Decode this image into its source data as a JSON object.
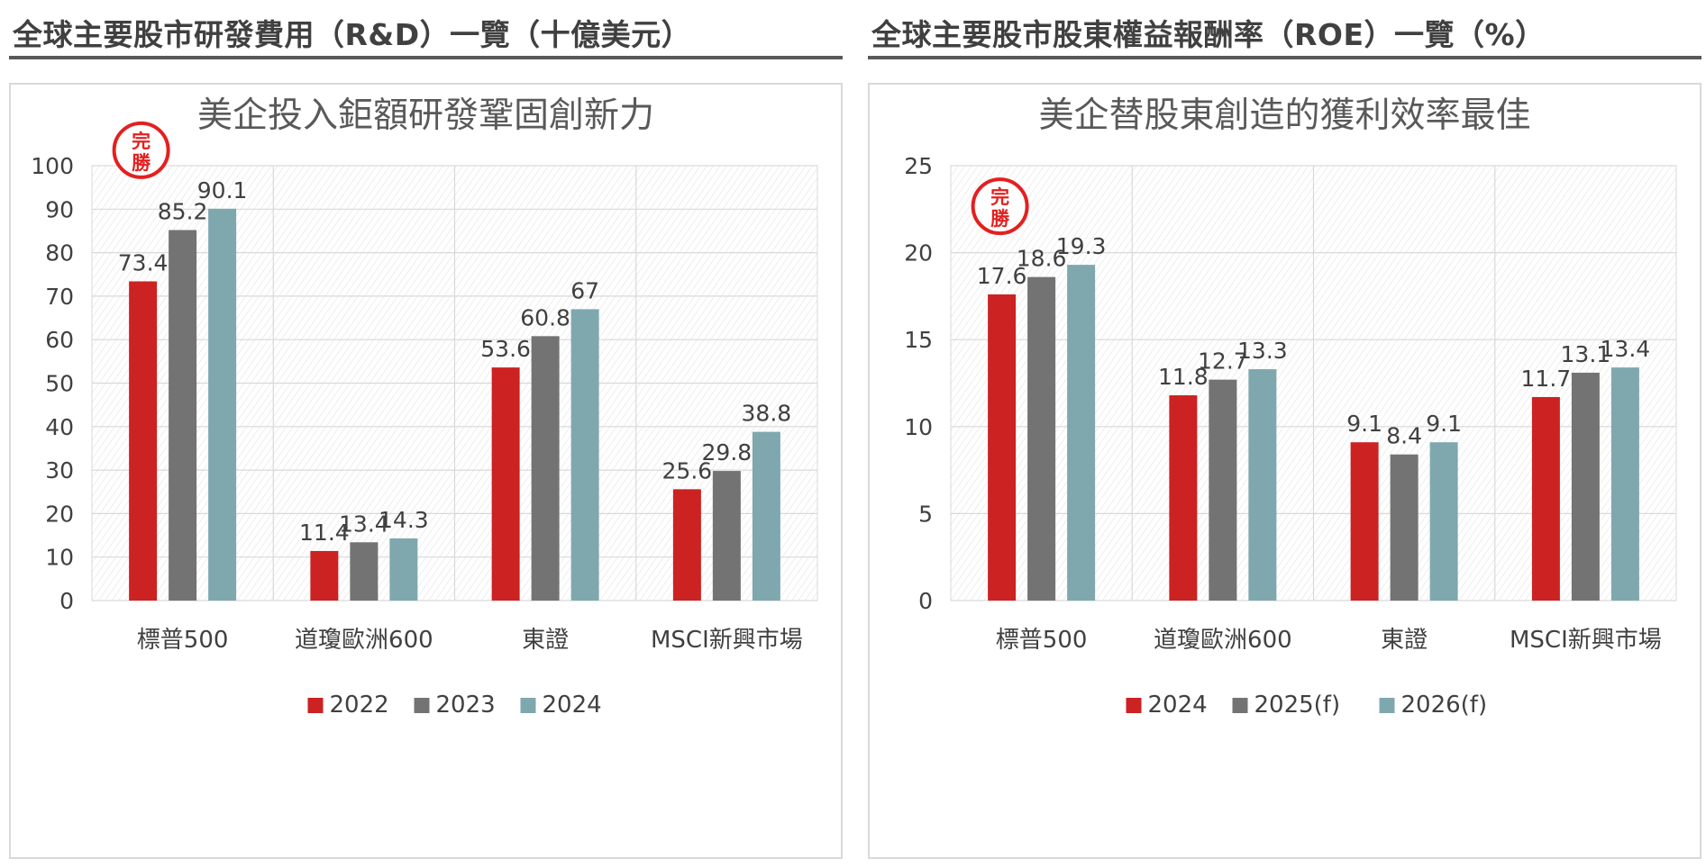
{
  "left": {
    "section_header": "全球主要股市研發費用（R&D）一覽（十億美元）",
    "stamp": "完勝",
    "chart_data": {
      "type": "bar",
      "title": "美企投入鉅額研發鞏固創新力",
      "categories": [
        "標普500",
        "道瓊歐洲600",
        "東證",
        "MSCI新興市場"
      ],
      "series": [
        {
          "name": "2022",
          "color": "#cc2222",
          "values": [
            73.4,
            11.4,
            53.6,
            25.6
          ],
          "labels": [
            "73.4",
            "11.4",
            "53.6",
            "25.6"
          ]
        },
        {
          "name": "2023",
          "color": "#737373",
          "values": [
            85.2,
            13.4,
            60.8,
            29.8
          ],
          "labels": [
            "85.2",
            "13.4",
            "60.8",
            "29.8"
          ]
        },
        {
          "name": "2024",
          "color": "#7fa8ae",
          "values": [
            90.1,
            14.3,
            67,
            38.8
          ],
          "labels": [
            "90.1",
            "14.3",
            "67",
            "38.8"
          ]
        }
      ],
      "ylim": [
        0,
        100
      ],
      "yticks": [
        "0",
        "10",
        "20",
        "30",
        "40",
        "50",
        "60",
        "70",
        "80",
        "90",
        "100"
      ],
      "grid": true,
      "legend": "bottom"
    }
  },
  "right": {
    "section_header": "全球主要股市股東權益報酬率（ROE）一覽（%）",
    "stamp": "完勝",
    "chart_data": {
      "type": "bar",
      "title": "美企替股東創造的獲利效率最佳",
      "categories": [
        "標普500",
        "道瓊歐洲600",
        "東證",
        "MSCI新興市場"
      ],
      "series": [
        {
          "name": "2024",
          "color": "#cc2222",
          "values": [
            17.6,
            11.8,
            9.1,
            11.7
          ],
          "labels": [
            "17.6",
            "11.8",
            "9.1",
            "11.7"
          ]
        },
        {
          "name": "2025(f)",
          "color": "#737373",
          "values": [
            18.6,
            12.7,
            8.4,
            13.1
          ],
          "labels": [
            "18.6",
            "12.7",
            "8.4",
            "13.1"
          ]
        },
        {
          "name": "2026(f)",
          "color": "#7fa8ae",
          "values": [
            19.3,
            13.3,
            9.1,
            13.4
          ],
          "labels": [
            "19.3",
            "13.3",
            "9.1",
            "13.4"
          ]
        }
      ],
      "ylim": [
        0,
        25
      ],
      "yticks": [
        "0",
        "5",
        "10",
        "15",
        "20",
        "25"
      ],
      "grid": true,
      "legend": "bottom"
    }
  }
}
